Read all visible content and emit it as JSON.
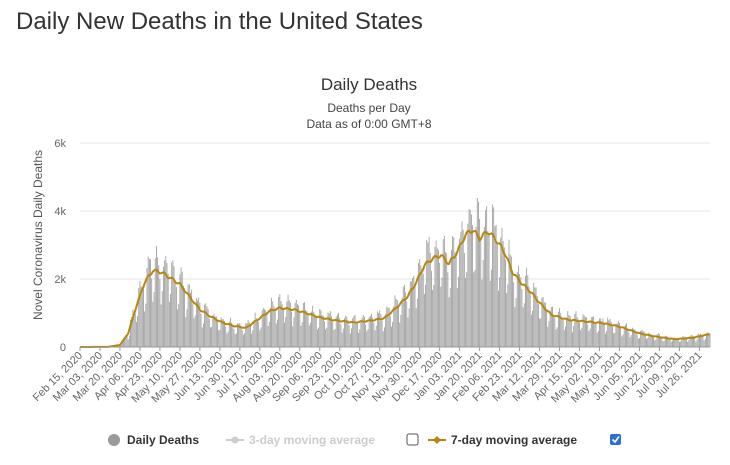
{
  "page": {
    "title": "Daily New Deaths in the United States"
  },
  "colors": {
    "bars": "#9a9a9a",
    "line_7day": "#b8860b",
    "line_3day_disabled": "#cccccc",
    "checkbox_checked": "#2a6fdb",
    "grid": "#e6e6e6"
  },
  "chart_data": {
    "type": "bar",
    "title": "Daily Deaths",
    "subtitle": "Deaths per Day",
    "subtitle2": "Data as of 0:00 GMT+8",
    "ylabel": "Novel Coronavirus Daily Deaths",
    "ylim": [
      0,
      6000
    ],
    "yticks": [
      0,
      2000,
      4000,
      6000
    ],
    "ytick_labels": [
      "0",
      "2k",
      "4k",
      "6k"
    ],
    "x_start": "2020-02-15",
    "x_end": "2021-08-04",
    "xtick_labels": [
      "Feb 15, 2020",
      "Mar 03, 2020",
      "Mar 20, 2020",
      "Apr 06, 2020",
      "Apr 23, 2020",
      "May 10, 2020",
      "May 27, 2020",
      "Jun 13, 2020",
      "Jun 30, 2020",
      "Jul 17, 2020",
      "Aug 03, 2020",
      "Aug 20, 2020",
      "Sep 06, 2020",
      "Sep 23, 2020",
      "Oct 10, 2020",
      "Oct 27, 2020",
      "Nov 13, 2020",
      "Nov 30, 2020",
      "Dec 17, 2020",
      "Jan 03, 2021",
      "Jan 20, 2021",
      "Feb 06, 2021",
      "Feb 23, 2021",
      "Mar 12, 2021",
      "Mar 29, 2021",
      "Apr 15, 2021",
      "May 02, 2021",
      "May 19, 2021",
      "Jun 05, 2021",
      "Jun 22, 2021",
      "Jul 09, 2021",
      "Jul 26, 2021"
    ],
    "trend_7day": [
      [
        "2020-02-15",
        0
      ],
      [
        "2020-03-10",
        5
      ],
      [
        "2020-03-20",
        60
      ],
      [
        "2020-03-27",
        400
      ],
      [
        "2020-04-03",
        1200
      ],
      [
        "2020-04-10",
        1900
      ],
      [
        "2020-04-17",
        2250
      ],
      [
        "2020-04-24",
        2200
      ],
      [
        "2020-05-01",
        2050
      ],
      [
        "2020-05-10",
        1850
      ],
      [
        "2020-05-20",
        1400
      ],
      [
        "2020-05-27",
        1100
      ],
      [
        "2020-06-05",
        900
      ],
      [
        "2020-06-15",
        720
      ],
      [
        "2020-06-25",
        620
      ],
      [
        "2020-07-05",
        560
      ],
      [
        "2020-07-15",
        800
      ],
      [
        "2020-07-25",
        1050
      ],
      [
        "2020-08-03",
        1150
      ],
      [
        "2020-08-15",
        1100
      ],
      [
        "2020-08-25",
        1000
      ],
      [
        "2020-09-06",
        870
      ],
      [
        "2020-09-20",
        780
      ],
      [
        "2020-10-05",
        720
      ],
      [
        "2020-10-20",
        780
      ],
      [
        "2020-10-31",
        850
      ],
      [
        "2020-11-10",
        1150
      ],
      [
        "2020-11-20",
        1500
      ],
      [
        "2020-11-27",
        1900
      ],
      [
        "2020-12-04",
        2400
      ],
      [
        "2020-12-11",
        2600
      ],
      [
        "2020-12-18",
        2700
      ],
      [
        "2020-12-25",
        2450
      ],
      [
        "2021-01-01",
        2800
      ],
      [
        "2021-01-08",
        3300
      ],
      [
        "2021-01-14",
        3450
      ],
      [
        "2021-01-20",
        3200
      ],
      [
        "2021-01-27",
        3400
      ],
      [
        "2021-02-03",
        3150
      ],
      [
        "2021-02-10",
        2800
      ],
      [
        "2021-02-17",
        2200
      ],
      [
        "2021-02-24",
        1900
      ],
      [
        "2021-03-05",
        1600
      ],
      [
        "2021-03-12",
        1300
      ],
      [
        "2021-03-22",
        950
      ],
      [
        "2021-04-05",
        800
      ],
      [
        "2021-04-20",
        750
      ],
      [
        "2021-05-05",
        700
      ],
      [
        "2021-05-19",
        600
      ],
      [
        "2021-06-05",
        400
      ],
      [
        "2021-06-20",
        300
      ],
      [
        "2021-07-05",
        230
      ],
      [
        "2021-07-20",
        270
      ],
      [
        "2021-08-04",
        380
      ]
    ]
  },
  "legend": {
    "daily_label": "Daily Deaths",
    "avg3_label": "3-day moving average",
    "avg7_label": "7-day moving average"
  }
}
